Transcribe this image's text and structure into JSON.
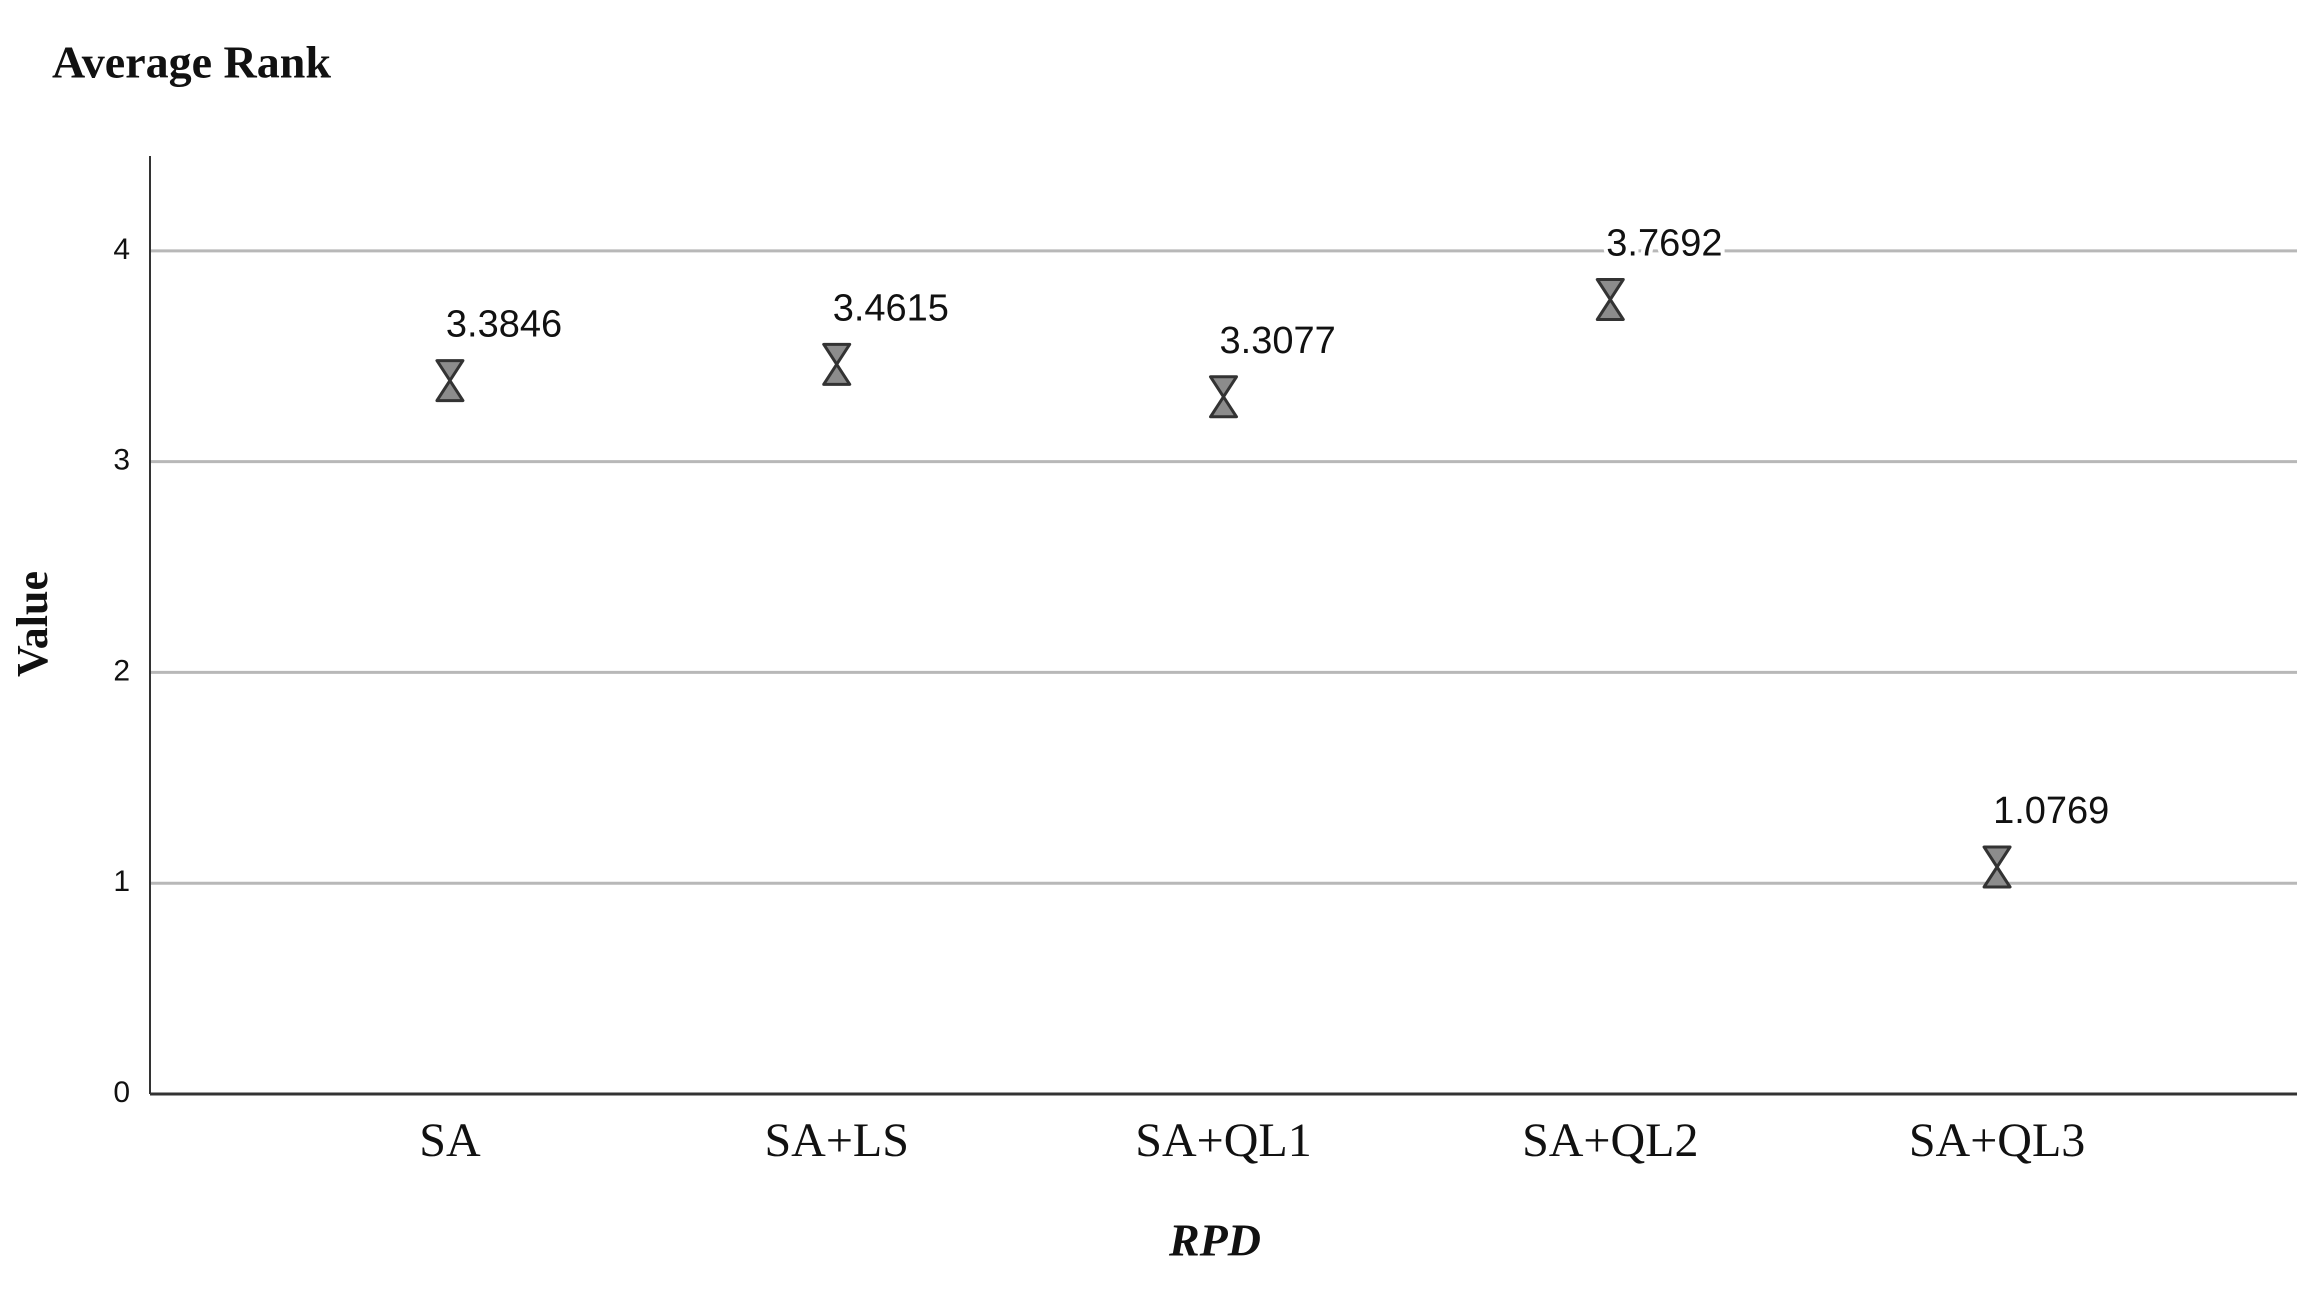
{
  "chart_data": {
    "type": "dot",
    "title": "Average Rank",
    "x_label": "RPD",
    "y_label": "Value",
    "categories": [
      "SA",
      "SA+LS",
      "SA+QL1",
      "SA+QL2",
      "SA+QL3"
    ],
    "values": [
      3.3846,
      3.4615,
      3.3077,
      3.7692,
      1.0769
    ],
    "color": "#8c8c8c",
    "ylim": [
      0,
      4.45
    ],
    "yticks": [
      0,
      1,
      2,
      3,
      4
    ],
    "grid": true
  }
}
